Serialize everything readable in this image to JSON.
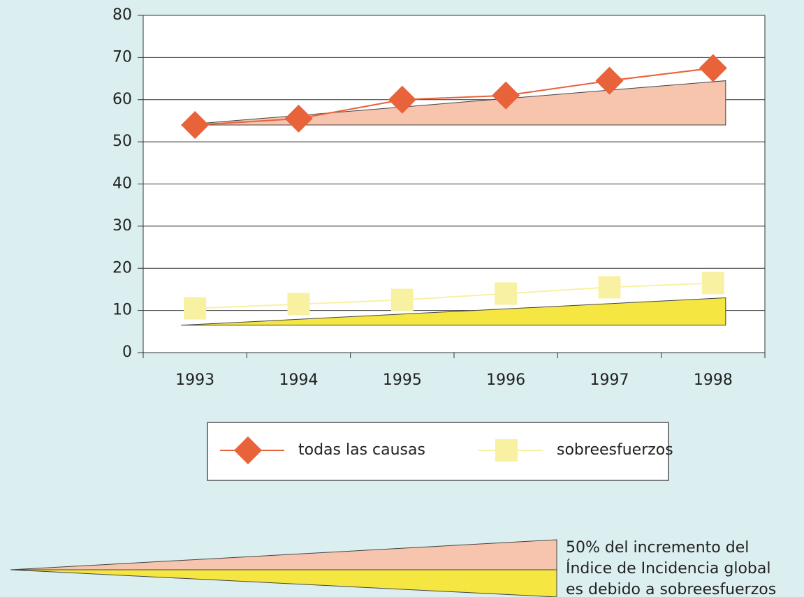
{
  "chart_data": {
    "type": "line",
    "categories": [
      "1993",
      "1994",
      "1995",
      "1996",
      "1997",
      "1998"
    ],
    "series": [
      {
        "name": "todas las causas",
        "color": "#e8623a",
        "values": [
          54,
          55.5,
          60,
          61,
          64.5,
          67.5
        ]
      },
      {
        "name": "sobreesfuerzos",
        "color": "#f8f1a2",
        "values": [
          10.5,
          11.5,
          12.5,
          14,
          15.5,
          16.5
        ]
      }
    ],
    "wedges": [
      {
        "color": "#f7c4ae",
        "base": 54,
        "end": 64.5
      },
      {
        "color": "#f5e642",
        "base": 6.5,
        "end": 13
      }
    ],
    "ylim": [
      0,
      80
    ],
    "yticks": [
      0,
      10,
      20,
      30,
      40,
      50,
      60,
      70,
      80
    ],
    "grid": true,
    "annotation": [
      "50% del incremento del",
      "Índice de Incidencia global",
      "es debido a sobreesfuerzos"
    ]
  }
}
